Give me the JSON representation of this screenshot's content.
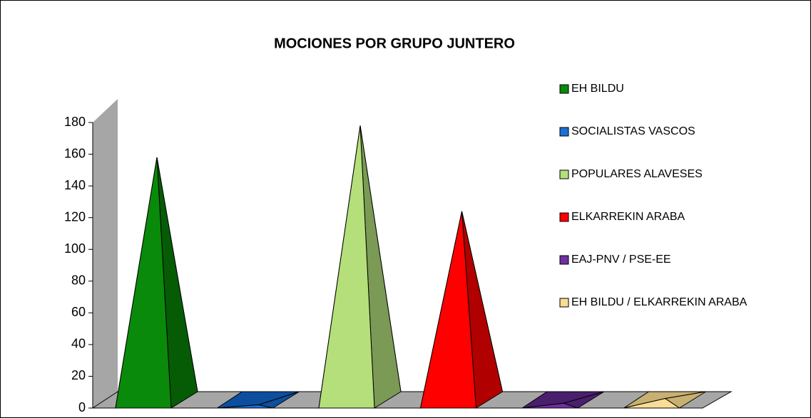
{
  "chart_data": {
    "type": "pyramid3d",
    "title": "MOCIONES POR GRUPO JUNTERO",
    "categories": [
      "EH BILDU",
      "SOCIALISTAS VASCOS",
      "POPULARES ALAVESES",
      "ELKARREKIN ARABA",
      "EAJ-PNV / PSE-EE",
      "EH BILDU / ELKARREKIN ARABA"
    ],
    "values": [
      158,
      2,
      178,
      124,
      3,
      6
    ],
    "colors": [
      "#0a8a0a",
      "#1a70d8",
      "#b4df7a",
      "#ff0000",
      "#7030a0",
      "#fadc96"
    ],
    "side_colors": [
      "#055c05",
      "#0d4f9e",
      "#7a9a55",
      "#b00000",
      "#4a1f6e",
      "#c8b070"
    ],
    "ylim": [
      0,
      180
    ],
    "yticks": [
      0,
      20,
      40,
      60,
      80,
      100,
      120,
      140,
      160,
      180
    ],
    "legend": "right"
  }
}
